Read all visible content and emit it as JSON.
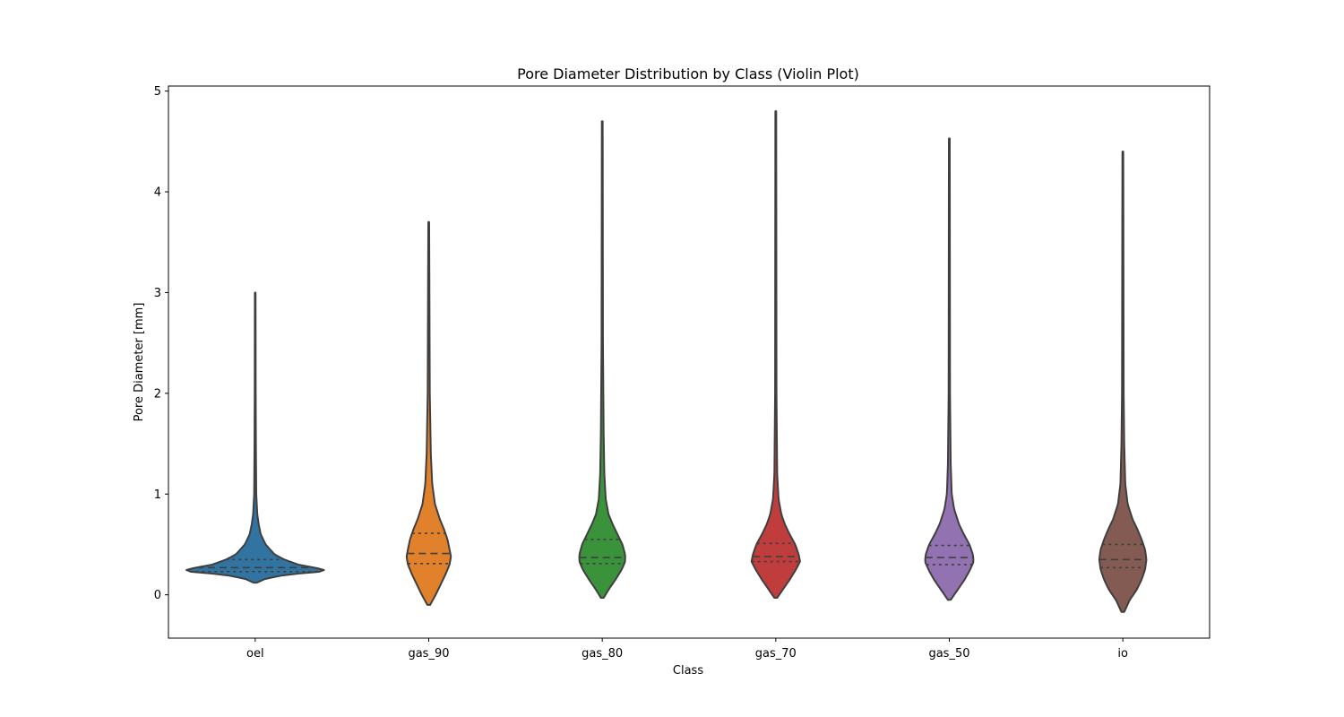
{
  "chart_data": {
    "type": "violin",
    "title": "Pore Diameter Distribution by Class (Violin Plot)",
    "xlabel": "Class",
    "ylabel": "Pore Diameter [mm]",
    "ylim": [
      -0.43,
      5.05
    ],
    "yticks": [
      "0",
      "1",
      "2",
      "3",
      "4",
      "5"
    ],
    "ytick_values": [
      0,
      1,
      2,
      3,
      4,
      5
    ],
    "grid": false,
    "inner": "quartile",
    "categories": [
      "oel",
      "gas_90",
      "gas_80",
      "gas_70",
      "gas_50",
      "io"
    ],
    "series": [
      {
        "category": "oel",
        "color": "#3274a1",
        "min": 0.12,
        "max": 3.0,
        "q1": 0.23,
        "median": 0.27,
        "q3": 0.35,
        "density": [
          [
            0.12,
            0.02
          ],
          [
            0.16,
            0.15
          ],
          [
            0.2,
            0.45
          ],
          [
            0.23,
            0.95
          ],
          [
            0.25,
            1.0
          ],
          [
            0.27,
            0.85
          ],
          [
            0.3,
            0.62
          ],
          [
            0.35,
            0.42
          ],
          [
            0.4,
            0.28
          ],
          [
            0.5,
            0.15
          ],
          [
            0.6,
            0.08
          ],
          [
            0.7,
            0.05
          ],
          [
            0.8,
            0.03
          ],
          [
            1.0,
            0.015
          ],
          [
            1.5,
            0.01
          ],
          [
            2.0,
            0.007
          ],
          [
            3.0,
            0.005
          ]
        ]
      },
      {
        "category": "gas_90",
        "color": "#e1812c",
        "min": -0.1,
        "max": 3.7,
        "q1": 0.31,
        "median": 0.41,
        "q3": 0.61,
        "density": [
          [
            -0.1,
            0.02
          ],
          [
            0.0,
            0.1
          ],
          [
            0.1,
            0.17
          ],
          [
            0.2,
            0.24
          ],
          [
            0.3,
            0.3
          ],
          [
            0.38,
            0.32
          ],
          [
            0.45,
            0.3
          ],
          [
            0.55,
            0.27
          ],
          [
            0.65,
            0.22
          ],
          [
            0.75,
            0.16
          ],
          [
            0.9,
            0.09
          ],
          [
            1.1,
            0.05
          ],
          [
            1.4,
            0.03
          ],
          [
            2.0,
            0.015
          ],
          [
            3.0,
            0.01
          ],
          [
            3.7,
            0.006
          ]
        ]
      },
      {
        "category": "gas_80",
        "color": "#3a923a",
        "min": -0.03,
        "max": 4.7,
        "q1": 0.31,
        "median": 0.37,
        "q3": 0.55,
        "density": [
          [
            -0.03,
            0.02
          ],
          [
            0.05,
            0.09
          ],
          [
            0.15,
            0.19
          ],
          [
            0.25,
            0.28
          ],
          [
            0.33,
            0.33
          ],
          [
            0.4,
            0.33
          ],
          [
            0.5,
            0.29
          ],
          [
            0.6,
            0.22
          ],
          [
            0.7,
            0.15
          ],
          [
            0.8,
            0.09
          ],
          [
            0.95,
            0.05
          ],
          [
            1.2,
            0.03
          ],
          [
            1.6,
            0.02
          ],
          [
            2.5,
            0.01
          ],
          [
            4.7,
            0.006
          ]
        ]
      },
      {
        "category": "gas_70",
        "color": "#c03d3e",
        "min": -0.03,
        "max": 4.8,
        "q1": 0.33,
        "median": 0.38,
        "q3": 0.51,
        "density": [
          [
            -0.03,
            0.02
          ],
          [
            0.05,
            0.1
          ],
          [
            0.15,
            0.2
          ],
          [
            0.25,
            0.29
          ],
          [
            0.33,
            0.35
          ],
          [
            0.4,
            0.33
          ],
          [
            0.5,
            0.28
          ],
          [
            0.6,
            0.2
          ],
          [
            0.7,
            0.13
          ],
          [
            0.8,
            0.08
          ],
          [
            0.95,
            0.04
          ],
          [
            1.2,
            0.02
          ],
          [
            2.0,
            0.01
          ],
          [
            4.8,
            0.006
          ]
        ]
      },
      {
        "category": "gas_50",
        "color": "#9372b2",
        "min": -0.05,
        "max": 4.53,
        "q1": 0.3,
        "median": 0.37,
        "q3": 0.49,
        "density": [
          [
            -0.05,
            0.02
          ],
          [
            0.05,
            0.12
          ],
          [
            0.15,
            0.22
          ],
          [
            0.25,
            0.3
          ],
          [
            0.33,
            0.35
          ],
          [
            0.4,
            0.34
          ],
          [
            0.5,
            0.29
          ],
          [
            0.6,
            0.21
          ],
          [
            0.7,
            0.14
          ],
          [
            0.85,
            0.07
          ],
          [
            1.0,
            0.035
          ],
          [
            1.3,
            0.02
          ],
          [
            2.0,
            0.01
          ],
          [
            4.53,
            0.006
          ]
        ]
      },
      {
        "category": "io",
        "color": "#845b53",
        "min": -0.17,
        "max": 4.4,
        "q1": 0.27,
        "median": 0.35,
        "q3": 0.5,
        "density": [
          [
            -0.17,
            0.02
          ],
          [
            -0.05,
            0.1
          ],
          [
            0.05,
            0.2
          ],
          [
            0.15,
            0.27
          ],
          [
            0.25,
            0.32
          ],
          [
            0.35,
            0.34
          ],
          [
            0.45,
            0.32
          ],
          [
            0.55,
            0.27
          ],
          [
            0.65,
            0.21
          ],
          [
            0.75,
            0.14
          ],
          [
            0.9,
            0.07
          ],
          [
            1.1,
            0.035
          ],
          [
            1.5,
            0.02
          ],
          [
            2.0,
            0.012
          ],
          [
            4.4,
            0.006
          ]
        ]
      }
    ]
  }
}
